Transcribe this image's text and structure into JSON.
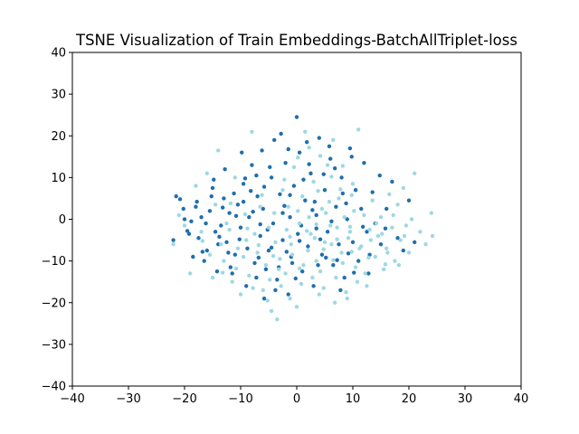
{
  "chart_data": {
    "type": "scatter",
    "title": "TSNE Visualization of Train Embeddings-BatchAllTriplet-loss",
    "xlabel": "",
    "ylabel": "",
    "xlim": [
      -40,
      40
    ],
    "ylim": [
      -40,
      40
    ],
    "xticks": [
      -40,
      -30,
      -20,
      -10,
      0,
      10,
      20,
      30,
      40
    ],
    "yticks": [
      -40,
      -30,
      -20,
      -10,
      0,
      10,
      20,
      30,
      40
    ],
    "grid": false,
    "series": [
      {
        "color": "#1f6fad",
        "points": [
          [
            -21.5,
            5.5
          ],
          [
            -20.8,
            4.8
          ],
          [
            -20.2,
            2.5
          ],
          [
            -19.5,
            -2.8
          ],
          [
            -18.8,
            -0.5
          ],
          [
            -18,
            3
          ],
          [
            -17.5,
            -4.5
          ],
          [
            -17,
            0.5
          ],
          [
            -16.5,
            -10
          ],
          [
            -16,
            -7.5
          ],
          [
            -15.5,
            2
          ],
          [
            -15,
            7.5
          ],
          [
            -14.5,
            -3
          ],
          [
            -14,
            -6
          ],
          [
            -13.5,
            -1.5
          ],
          [
            -13,
            5
          ],
          [
            -12.8,
            12
          ],
          [
            -12.5,
            -5.5
          ],
          [
            -12,
            1.5
          ],
          [
            -11.5,
            -13
          ],
          [
            -11,
            -8.5
          ],
          [
            -10.5,
            3.5
          ],
          [
            -10,
            -2
          ],
          [
            -9.5,
            8.5
          ],
          [
            -9,
            -16
          ],
          [
            -8.8,
            -7
          ],
          [
            -8.5,
            0.5
          ],
          [
            -8,
            13
          ],
          [
            -7.5,
            -10.5
          ],
          [
            -7,
            5.5
          ],
          [
            -6.5,
            -4
          ],
          [
            -6.2,
            16.5
          ],
          [
            -6,
            2.5
          ],
          [
            -5.5,
            -12
          ],
          [
            -5,
            -7.5
          ],
          [
            -4.5,
            10
          ],
          [
            -4.2,
            -1
          ],
          [
            -4,
            19
          ],
          [
            -3.5,
            -14.5
          ],
          [
            -3,
            6
          ],
          [
            -2.5,
            -5
          ],
          [
            -2,
            13.5
          ],
          [
            -1.5,
            -18
          ],
          [
            -1.2,
            0.5
          ],
          [
            -1,
            -9
          ],
          [
            -0.5,
            8
          ],
          [
            0,
            24.5
          ],
          [
            0.2,
            -3.5
          ],
          [
            0.5,
            16
          ],
          [
            1,
            -12.5
          ],
          [
            1.5,
            4.5
          ],
          [
            2,
            -6.5
          ],
          [
            2.5,
            11
          ],
          [
            3,
            -16
          ],
          [
            3.5,
            1
          ],
          [
            4,
            19.5
          ],
          [
            4.5,
            -8.5
          ],
          [
            5,
            7
          ],
          [
            5.5,
            -3
          ],
          [
            6,
            14.5
          ],
          [
            6.5,
            -11
          ],
          [
            7,
            3
          ],
          [
            7.5,
            -6
          ],
          [
            8,
            10
          ],
          [
            8.5,
            -14
          ],
          [
            9,
            0
          ],
          [
            9.5,
            17
          ],
          [
            10,
            -5.5
          ],
          [
            10.5,
            7
          ],
          [
            11,
            -10
          ],
          [
            11.5,
            2.5
          ],
          [
            12,
            13.5
          ],
          [
            12.5,
            -3
          ],
          [
            13,
            -8.5
          ],
          [
            13.5,
            6.5
          ],
          [
            14,
            -1
          ],
          [
            15,
            -6
          ],
          [
            16,
            2.5
          ],
          [
            17,
            9
          ],
          [
            18,
            -4.5
          ],
          [
            19,
            -7.5
          ],
          [
            20,
            4.5
          ],
          [
            21,
            -5.5
          ],
          [
            -22,
            -5
          ],
          [
            -18.5,
            -9
          ],
          [
            -14.8,
            9.5
          ],
          [
            -11.8,
            -11.5
          ],
          [
            -9.8,
            16
          ],
          [
            -7.2,
            -14
          ],
          [
            -5.8,
            -19
          ],
          [
            -3.8,
            -17
          ],
          [
            -2.8,
            20.5
          ],
          [
            -0.8,
            -10.5
          ],
          [
            1.8,
            18.5
          ],
          [
            3.8,
            -11
          ],
          [
            5.8,
            17.5
          ],
          [
            7.8,
            -17
          ],
          [
            9.8,
            15
          ],
          [
            12.8,
            -13
          ],
          [
            14.8,
            10.5
          ],
          [
            -20,
            0
          ],
          [
            -16.2,
            -1
          ],
          [
            -13.2,
            2.8
          ],
          [
            -10.2,
            -4.8
          ],
          [
            -7.8,
            1.8
          ],
          [
            -5.2,
            -2.5
          ],
          [
            -2.2,
            3.2
          ],
          [
            0.8,
            -1.5
          ],
          [
            3.2,
            4.2
          ],
          [
            6.2,
            -0.5
          ],
          [
            8.8,
            3.8
          ],
          [
            11.8,
            -1.8
          ],
          [
            -17.8,
            4.2
          ],
          [
            -15.2,
            5.5
          ],
          [
            -12.2,
            -8
          ],
          [
            -9.2,
            9.8
          ],
          [
            -6.8,
            -9.2
          ],
          [
            -4.8,
            12.5
          ],
          [
            -1.8,
            -7.8
          ],
          [
            1.2,
            9.5
          ],
          [
            4.2,
            -4.8
          ],
          [
            6.8,
            12.2
          ],
          [
            9.2,
            -8.2
          ],
          [
            -8.2,
            6.8
          ],
          [
            -3.2,
            -11.5
          ],
          [
            2.2,
            13.2
          ],
          [
            7.2,
            -9.8
          ],
          [
            -19.2,
            -3.5
          ],
          [
            -14.2,
            -12.5
          ],
          [
            -11.2,
            6.2
          ],
          [
            -5.8,
            7.8
          ],
          [
            -0.2,
            -14.2
          ],
          [
            4.8,
            10.8
          ],
          [
            10.2,
            -12.8
          ],
          [
            15.8,
            -2.2
          ],
          [
            -2.5,
            1.5
          ],
          [
            -1.2,
            5.8
          ],
          [
            0.5,
            -5.2
          ],
          [
            2.8,
            2.2
          ],
          [
            5.2,
            -9.2
          ],
          [
            -6.5,
            -1.2
          ],
          [
            -10.8,
            0.8
          ],
          [
            -13.8,
            -4.2
          ],
          [
            -16.8,
            -7.8
          ],
          [
            -9.5,
            4.2
          ],
          [
            -7.2,
            10.5
          ],
          [
            -4.5,
            -6.8
          ],
          [
            -1.5,
            16.8
          ],
          [
            3.5,
            -2.2
          ],
          [
            8.2,
            6.2
          ]
        ]
      },
      {
        "color": "#9fd8e2",
        "points": [
          [
            -19,
            -13
          ],
          [
            -18,
            8
          ],
          [
            -16,
            11
          ],
          [
            -15,
            -14
          ],
          [
            -14,
            16.5
          ],
          [
            -13,
            -10
          ],
          [
            -12,
            -2.5
          ],
          [
            -11,
            10
          ],
          [
            -10,
            -18
          ],
          [
            -9,
            -5
          ],
          [
            -8,
            21
          ],
          [
            -7,
            -8
          ],
          [
            -6,
            -17
          ],
          [
            -5,
            -2
          ],
          [
            -4.5,
            -22
          ],
          [
            -4,
            1.5
          ],
          [
            -3.5,
            -24
          ],
          [
            -3,
            -9.5
          ],
          [
            -2.5,
            7
          ],
          [
            -2,
            -13
          ],
          [
            -1.5,
            3
          ],
          [
            -1,
            -6
          ],
          [
            -0.5,
            12.5
          ],
          [
            0,
            -21
          ],
          [
            0.5,
            -1
          ],
          [
            1,
            5.5
          ],
          [
            1.5,
            21
          ],
          [
            2,
            -7.5
          ],
          [
            2.5,
            -3.5
          ],
          [
            3,
            9
          ],
          [
            3.5,
            -10
          ],
          [
            4,
            -18
          ],
          [
            4.5,
            2.5
          ],
          [
            5,
            -5.5
          ],
          [
            5.5,
            13
          ],
          [
            6,
            -1.5
          ],
          [
            6.5,
            19
          ],
          [
            7,
            -14
          ],
          [
            7.5,
            5
          ],
          [
            8,
            -8
          ],
          [
            8.5,
            0.5
          ],
          [
            9,
            -19
          ],
          [
            9.5,
            -3
          ],
          [
            10,
            8.5
          ],
          [
            10.5,
            -11.5
          ],
          [
            11,
            21.5
          ],
          [
            11.5,
            -6.5
          ],
          [
            12,
            1
          ],
          [
            12.5,
            -16
          ],
          [
            13,
            -2.5
          ],
          [
            13.5,
            4.5
          ],
          [
            14,
            -9
          ],
          [
            14.5,
            -4
          ],
          [
            15,
            0.5
          ],
          [
            15.5,
            -12
          ],
          [
            16,
            -7
          ],
          [
            16.5,
            6
          ],
          [
            17,
            -2
          ],
          [
            17.5,
            -10
          ],
          [
            18,
            3.5
          ],
          [
            18.5,
            -5
          ],
          [
            19,
            7.5
          ],
          [
            19.5,
            -1.5
          ],
          [
            20,
            -8
          ],
          [
            20.5,
            0
          ],
          [
            21,
            11
          ],
          [
            22,
            -3
          ],
          [
            23,
            -6
          ],
          [
            24,
            1.5
          ],
          [
            24.2,
            -4
          ],
          [
            -22,
            -6
          ],
          [
            -21,
            1
          ],
          [
            -20,
            -1.5
          ],
          [
            -17,
            -3
          ],
          [
            -15.5,
            -8.5
          ],
          [
            -13.5,
            -6
          ],
          [
            -11.5,
            -15
          ],
          [
            -9.5,
            -9
          ],
          [
            -8.5,
            -13.5
          ],
          [
            -7.5,
            -3.5
          ],
          [
            -6.5,
            3
          ],
          [
            -5.5,
            -11
          ],
          [
            -4.8,
            -14.5
          ],
          [
            -3.8,
            -5.5
          ],
          [
            -2.8,
            -16
          ],
          [
            -1.8,
            -2.5
          ],
          [
            -0.8,
            -8.5
          ],
          [
            0.2,
            2
          ],
          [
            1.2,
            -11
          ],
          [
            2.2,
            0.5
          ],
          [
            3.2,
            -4.5
          ],
          [
            4.2,
            -12.5
          ],
          [
            5.2,
            1.5
          ],
          [
            6.2,
            -6
          ],
          [
            7.2,
            -2
          ],
          [
            8.2,
            -10.5
          ],
          [
            9.2,
            -4.5
          ],
          [
            10.2,
            2
          ],
          [
            11.2,
            -7
          ],
          [
            12.2,
            -13
          ],
          [
            13.2,
            -5
          ],
          [
            14.2,
            -1
          ],
          [
            15.2,
            -3.5
          ],
          [
            16.2,
            -8
          ],
          [
            17.2,
            1
          ],
          [
            18.2,
            -11
          ],
          [
            19.2,
            -4
          ],
          [
            -14.5,
            3.5
          ],
          [
            -12.5,
            -1
          ],
          [
            -10.5,
            -7
          ],
          [
            -7.8,
            -16.5
          ],
          [
            -5.2,
            -19.5
          ],
          [
            -3.2,
            -12
          ],
          [
            -1.2,
            -19
          ],
          [
            0.8,
            -15.5
          ],
          [
            2.8,
            -14
          ],
          [
            4.8,
            -16.5
          ],
          [
            6.8,
            -20
          ],
          [
            8.8,
            -17.5
          ],
          [
            10.8,
            -15
          ],
          [
            -2.2,
            9.5
          ],
          [
            0.2,
            14.8
          ],
          [
            2.2,
            17.2
          ],
          [
            4.2,
            15.2
          ],
          [
            6.2,
            10.2
          ],
          [
            8.2,
            12.8
          ],
          [
            5.8,
            4.2
          ],
          [
            7.8,
            7.2
          ],
          [
            9.8,
            5.8
          ],
          [
            3.8,
            6.8
          ],
          [
            -6.8,
            -6.2
          ],
          [
            -4.2,
            -8.8
          ],
          [
            -1.2,
            -4.2
          ],
          [
            1.8,
            -2.8
          ],
          [
            4.8,
            -7.2
          ],
          [
            7.2,
            -4.8
          ],
          [
            9.8,
            -7.8
          ],
          [
            12.8,
            -9.2
          ],
          [
            15.8,
            -10.8
          ],
          [
            -8.8,
            -2.2
          ],
          [
            -10.8,
            -11.8
          ],
          [
            -13.2,
            -12.8
          ],
          [
            -16.8,
            -5.2
          ],
          [
            -11.8,
            3.8
          ],
          [
            -9.2,
            1.2
          ],
          [
            -6.2,
            5.8
          ],
          [
            0.5,
            -11.8
          ],
          [
            3.5,
            -1.2
          ],
          [
            6.5,
            -9.8
          ],
          [
            9.5,
            -1.8
          ]
        ]
      }
    ]
  }
}
